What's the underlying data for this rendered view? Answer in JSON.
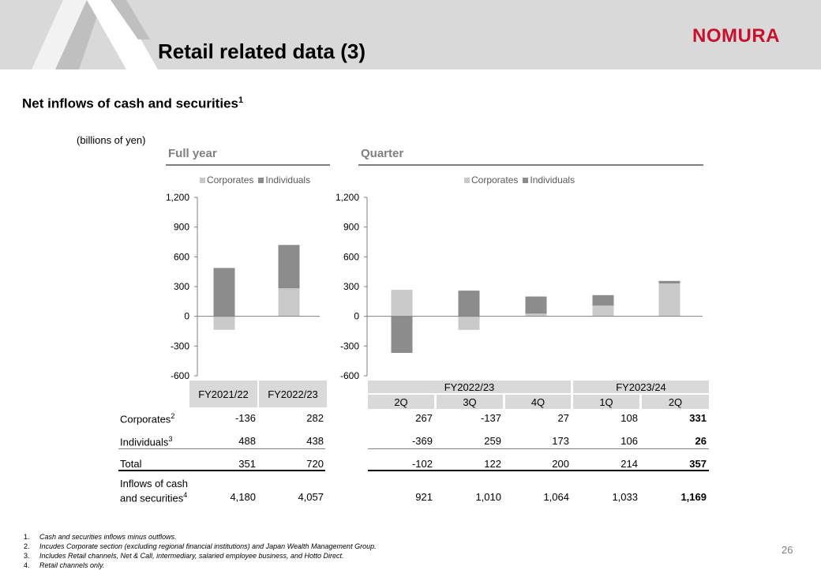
{
  "header": {
    "title": "Retail related data (3)",
    "logo": "NOMURA"
  },
  "section_title": "Net inflows of cash and securities",
  "section_title_sup": "1",
  "unit_label": "(billions of yen)",
  "panels": {
    "full_year_label": "Full year",
    "quarter_label": "Quarter"
  },
  "colors": {
    "corporates": "#c9c9c9",
    "individuals": "#8c8c8c",
    "header_bg": "#d9d9d9",
    "logo_red": "#c8102e"
  },
  "chart_data": [
    {
      "type": "bar",
      "stacked": true,
      "categories": [
        "FY2021/22",
        "FY2022/23"
      ],
      "series": [
        {
          "name": "Corporates",
          "values": [
            -136,
            282
          ]
        },
        {
          "name": "Individuals",
          "values": [
            488,
            438
          ]
        }
      ],
      "ylim": [
        -600,
        1200
      ],
      "yticks": [
        "1,200",
        "900",
        "600",
        "300",
        "0",
        "-300",
        "-600"
      ],
      "legend_position": "top"
    },
    {
      "type": "bar",
      "stacked": true,
      "categories": [
        "FY2022/23 2Q",
        "FY2022/23 3Q",
        "FY2022/23 4Q",
        "FY2023/24 1Q",
        "FY2023/24 2Q"
      ],
      "series": [
        {
          "name": "Corporates",
          "values": [
            267,
            -137,
            27,
            108,
            331
          ]
        },
        {
          "name": "Individuals",
          "values": [
            -369,
            259,
            173,
            106,
            26
          ]
        }
      ],
      "ylim": [
        -600,
        1200
      ],
      "yticks": [
        "1,200",
        "900",
        "600",
        "300",
        "0",
        "-300",
        "-600"
      ],
      "legend_position": "top"
    }
  ],
  "legend": {
    "corporates": "Corporates",
    "individuals": "Individuals"
  },
  "table": {
    "full_year_headers": [
      "FY2021/22",
      "FY2022/23"
    ],
    "quarter_groups": [
      "FY2022/23",
      "FY2023/24"
    ],
    "quarter_headers": [
      "2Q",
      "3Q",
      "4Q",
      "1Q",
      "2Q"
    ],
    "rows": [
      {
        "label": "Corporates",
        "sup": "2",
        "full_year": [
          "-136",
          "282"
        ],
        "quarter": [
          "267",
          "-137",
          "27",
          "108",
          "331"
        ]
      },
      {
        "label": "Individuals",
        "sup": "3",
        "full_year": [
          "488",
          "438"
        ],
        "quarter": [
          "-369",
          "259",
          "173",
          "106",
          "26"
        ]
      },
      {
        "label": "Total",
        "sup": "",
        "full_year": [
          "351",
          "720"
        ],
        "quarter": [
          "-102",
          "122",
          "200",
          "214",
          "357"
        ]
      },
      {
        "label_line1": "Inflows of cash",
        "label": "and securities",
        "sup": "4",
        "full_year": [
          "4,180",
          "4,057"
        ],
        "quarter": [
          "921",
          "1,010",
          "1,064",
          "1,033",
          "1,169"
        ]
      }
    ]
  },
  "footnotes": [
    {
      "num": "1.",
      "text": "Cash and securities inflows minus outflows."
    },
    {
      "num": "2.",
      "text": "Incudes Corporate section (excluding regional financial institutions) and Japan Wealth Management Group."
    },
    {
      "num": "3.",
      "text": "Includes Retail channels, Net & Call, intermediary, salaried employee business, and Hotto Direct."
    },
    {
      "num": "4.",
      "text": "Retail channels only."
    }
  ],
  "page_number": "26"
}
